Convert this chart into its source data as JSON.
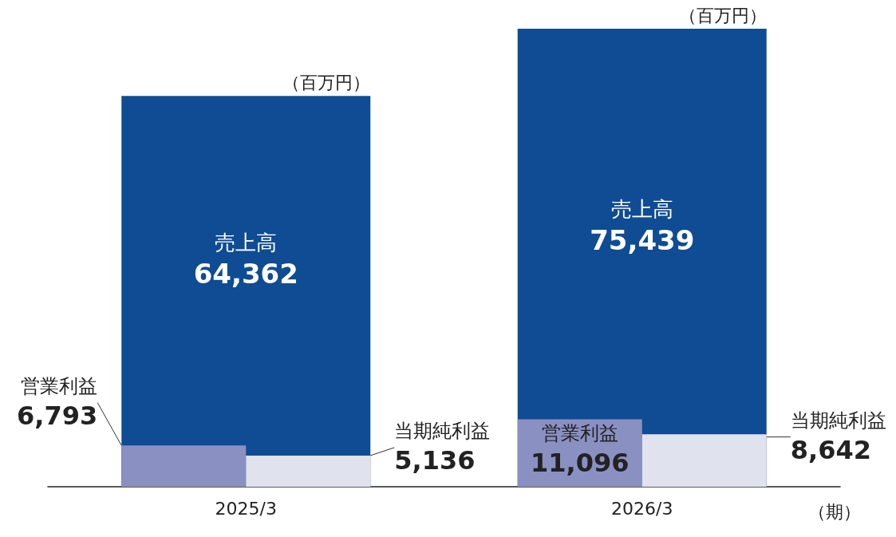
{
  "chart_data": {
    "type": "bar",
    "categories": [
      "2025/3",
      "2026/3"
    ],
    "series": [
      {
        "name": "売上高",
        "color": "#0f4c94",
        "values": [
          64362,
          75439
        ],
        "value_labels": [
          "64,362",
          "75,439"
        ]
      },
      {
        "name": "営業利益",
        "color": "#8a90c2",
        "values": [
          6793,
          11096
        ],
        "value_labels": [
          "6,793",
          "11,096"
        ]
      },
      {
        "name": "当期純利益",
        "color": "#e0e2ee",
        "values": [
          5136,
          8642
        ],
        "value_labels": [
          "5,136",
          "8,642"
        ]
      }
    ],
    "ylabel": "（百万円）",
    "xlabel": "（期）",
    "legend": false,
    "tick_labels": "x"
  }
}
